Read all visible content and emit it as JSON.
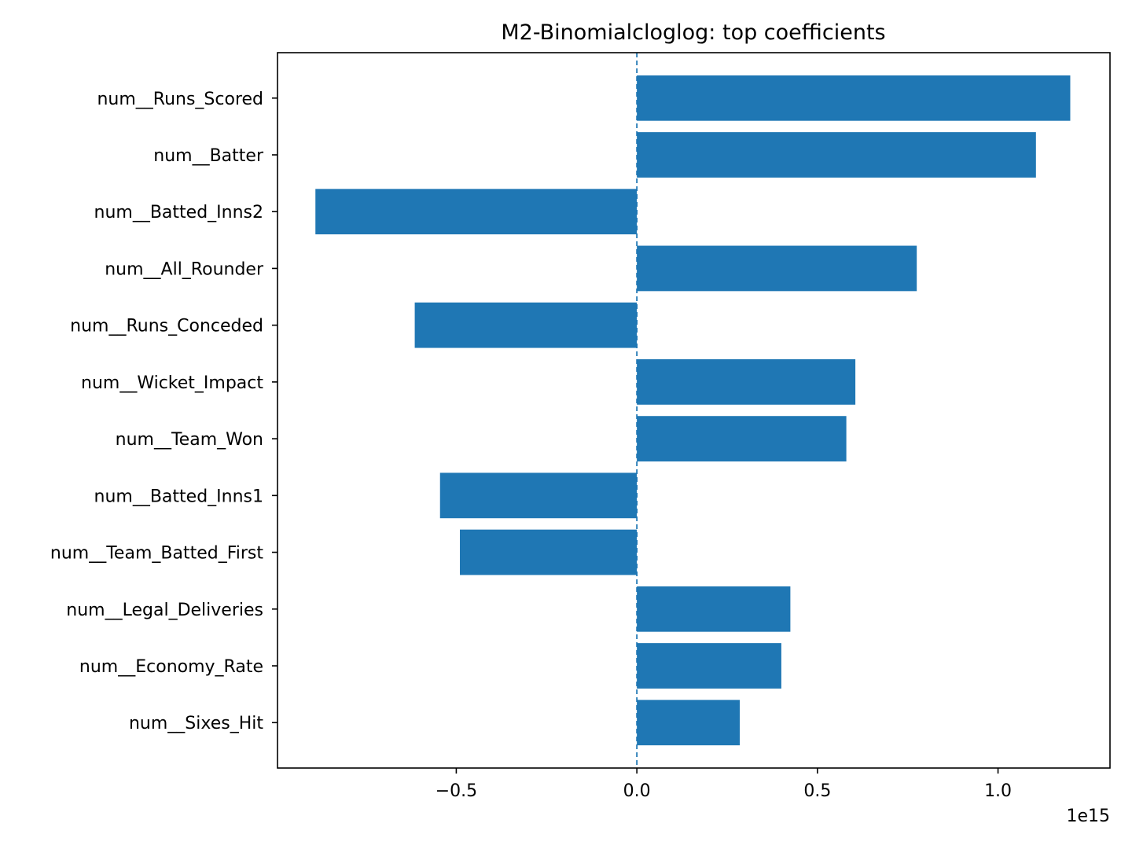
{
  "chart_data": {
    "type": "bar",
    "orientation": "horizontal",
    "title": "M2-Binomialcloglog: top coefficients",
    "xlabel": "",
    "ylabel": "",
    "x_scale_label": "1e15",
    "x_multiplier": 1000000000000000.0,
    "xlim": [
      -0.995,
      1.31
    ],
    "xticks": [
      {
        "value": -0.5,
        "label": "−0.5"
      },
      {
        "value": 0.0,
        "label": "0.0"
      },
      {
        "value": 0.5,
        "label": "0.5"
      },
      {
        "value": 1.0,
        "label": "1.0"
      }
    ],
    "categories": [
      "num__Runs_Scored",
      "num__Batter",
      "num__Batted_Inns2",
      "num__All_Rounder",
      "num__Runs_Conceded",
      "num__Wicket_Impact",
      "num__Team_Won",
      "num__Batted_Inns1",
      "num__Team_Batted_First",
      "num__Legal_Deliveries",
      "num__Economy_Rate",
      "num__Sixes_Hit"
    ],
    "values": [
      1.2,
      1.105,
      -0.89,
      0.775,
      -0.615,
      0.605,
      0.58,
      -0.545,
      -0.49,
      0.425,
      0.4,
      0.285
    ],
    "reference_line": {
      "x": 0,
      "style": "dashed"
    },
    "grid": false,
    "legend": false,
    "colors": {
      "bar": "#1f77b4",
      "refline": "#1f77b4",
      "axis": "#000000",
      "background": "#ffffff"
    }
  }
}
